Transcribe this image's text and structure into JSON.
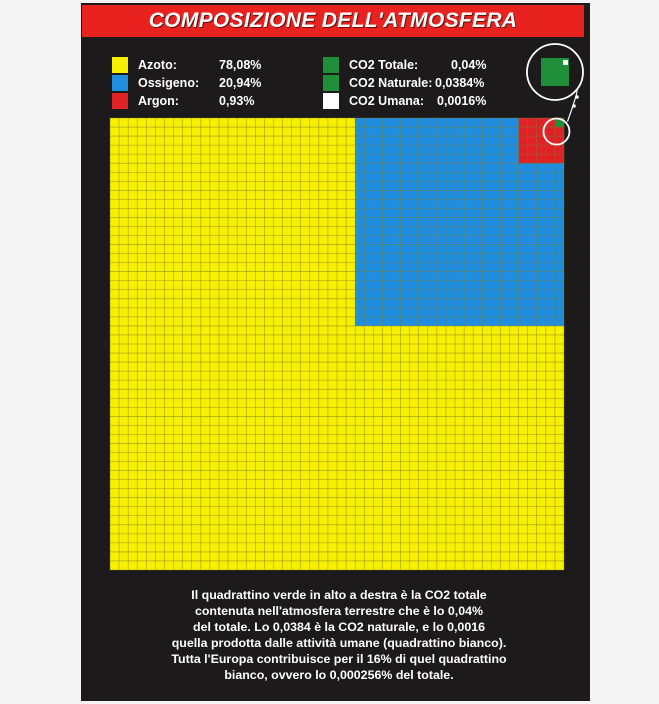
{
  "title": "COMPOSIZIONE DELL'ATMOSFERA",
  "colors": {
    "azoto": "#f7f000",
    "ossigeno": "#1f8ee0",
    "argon": "#e02227",
    "co2": "#1f8f3a",
    "co2_umana": "#ffffff",
    "background": "#1c1a1b",
    "title_bar": "#e8231f"
  },
  "legend": [
    {
      "name": "Azoto:",
      "value": "78,08%",
      "color_key": "azoto"
    },
    {
      "name": "Ossigeno:",
      "value": "20,94%",
      "color_key": "ossigeno"
    },
    {
      "name": "Argon:",
      "value": "0,93%",
      "color_key": "argon"
    },
    {
      "name": "CO2 Totale:",
      "value": "0,04%",
      "color_key": "co2"
    },
    {
      "name": "CO2 Naturale:",
      "value": "0,0384%",
      "color_key": "co2"
    },
    {
      "name": "CO2 Umana:",
      "value": "0,0016%",
      "color_key": "co2_umana"
    }
  ],
  "chart_data": {
    "type": "waffle",
    "grid": {
      "rows": 50,
      "cols": 50,
      "total_cells": 2500
    },
    "series": [
      {
        "name": "Azoto",
        "percent": 78.08
      },
      {
        "name": "Ossigeno",
        "percent": 20.94
      },
      {
        "name": "Argon",
        "percent": 0.93
      },
      {
        "name": "CO2 Totale",
        "percent": 0.04
      },
      {
        "name": "CO2 Naturale",
        "percent": 0.0384
      },
      {
        "name": "CO2 Umana",
        "percent": 0.0016
      }
    ]
  },
  "caption_lines": [
    "Il quadrattino verde in alto a destra è la CO2 totale",
    "contenuta nell'atmosfera terrestre che è lo 0,04%",
    "del totale. Lo 0,0384 è la CO2 naturale, e lo 0,0016",
    "quella prodotta dalle attività umane (quadrattino bianco).",
    "Tutta l'Europa contribuisce per il 16% di quel quadrattino",
    "bianco, ovvero lo 0,000256% del totale."
  ]
}
